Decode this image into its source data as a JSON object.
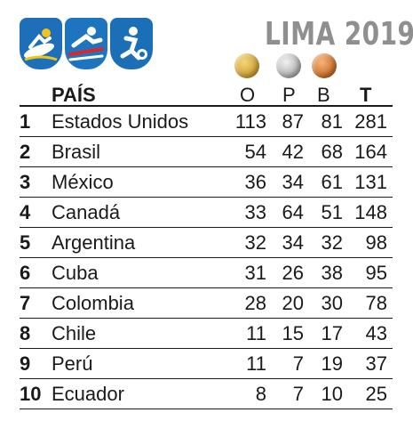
{
  "header": {
    "event_title": "LIMA 2019",
    "sport_icons": [
      "surfing-icon",
      "cycling-icon",
      "football-icon"
    ],
    "medal_icons": [
      "gold-medal-icon",
      "silver-medal-icon",
      "bronze-medal-icon"
    ]
  },
  "columns": {
    "country": "PAÍS",
    "gold": "O",
    "silver": "P",
    "bronze": "B",
    "total": "T"
  },
  "rows": [
    {
      "rank": "1",
      "country": "Estados Unidos",
      "gold": "113",
      "silver": "87",
      "bronze": "81",
      "total": "281"
    },
    {
      "rank": "2",
      "country": "Brasil",
      "gold": "54",
      "silver": "42",
      "bronze": "68",
      "total": "164"
    },
    {
      "rank": "3",
      "country": "México",
      "gold": "36",
      "silver": "34",
      "bronze": "61",
      "total": "131"
    },
    {
      "rank": "4",
      "country": "Canadá",
      "gold": "33",
      "silver": "64",
      "bronze": "51",
      "total": "148"
    },
    {
      "rank": "5",
      "country": "Argentina",
      "gold": "32",
      "silver": "34",
      "bronze": "32",
      "total": "98"
    },
    {
      "rank": "6",
      "country": "Cuba",
      "gold": "31",
      "silver": "26",
      "bronze": "38",
      "total": "95"
    },
    {
      "rank": "7",
      "country": "Colombia",
      "gold": "28",
      "silver": "20",
      "bronze": "30",
      "total": "78"
    },
    {
      "rank": "8",
      "country": "Chile",
      "gold": "11",
      "silver": "15",
      "bronze": "17",
      "total": "43"
    },
    {
      "rank": "9",
      "country": "Perú",
      "gold": "11",
      "silver": "7",
      "bronze": "19",
      "total": "37"
    },
    {
      "rank": "10",
      "country": "Ecuador",
      "gold": "8",
      "silver": "7",
      "bronze": "10",
      "total": "25"
    }
  ],
  "colors": {
    "title_gray": "#8f8f8f",
    "icon_blue": "#1c6fb8",
    "gold": "#d4a73a",
    "silver": "#bdbdbd",
    "bronze": "#d98232"
  }
}
